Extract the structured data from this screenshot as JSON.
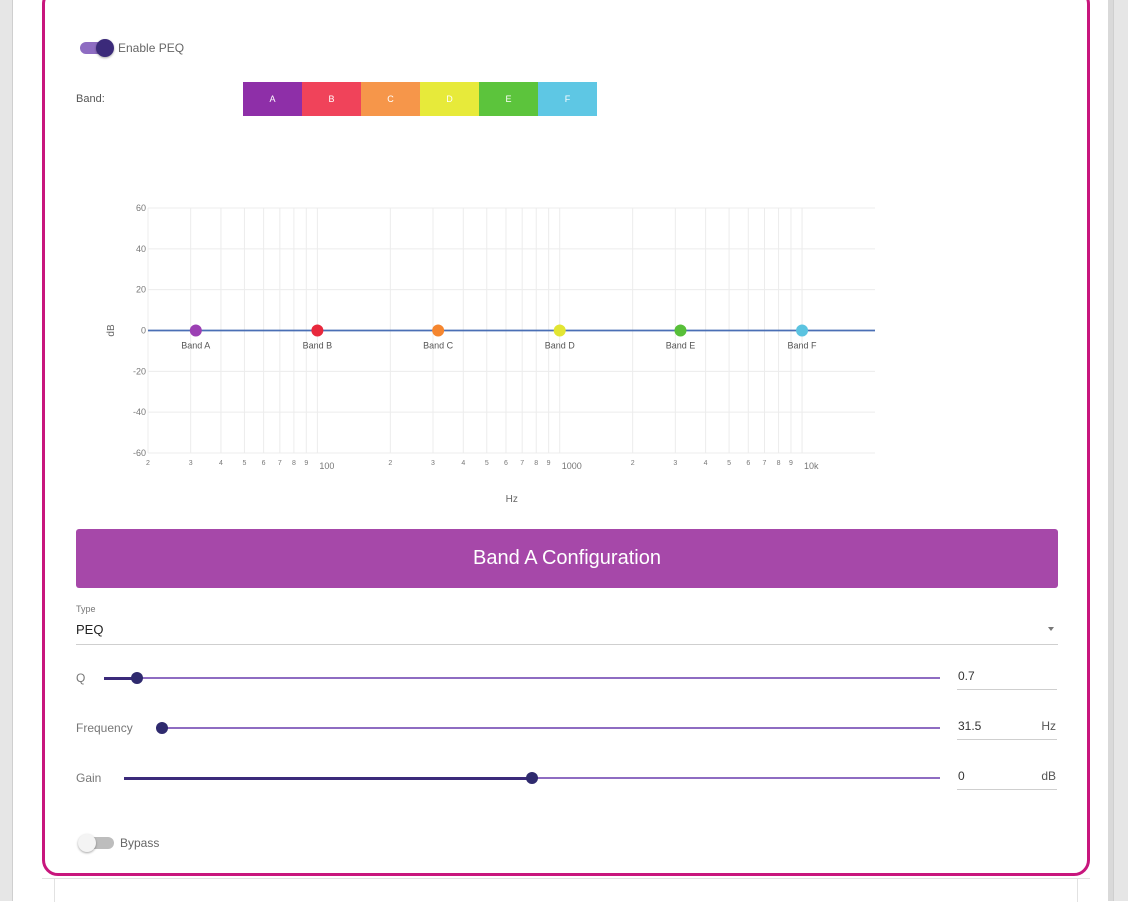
{
  "peq": {
    "enable_label": "Enable PEQ",
    "enabled": true
  },
  "bands": {
    "label": "Band:",
    "items": [
      {
        "id": "A",
        "color": "#8e2fa8"
      },
      {
        "id": "B",
        "color": "#f0435a"
      },
      {
        "id": "C",
        "color": "#f6964a"
      },
      {
        "id": "D",
        "color": "#e7ea3a"
      },
      {
        "id": "E",
        "color": "#5cc43c"
      },
      {
        "id": "F",
        "color": "#5ec7e4"
      }
    ],
    "selected": "A"
  },
  "chart_data": {
    "type": "line",
    "ylabel": "dB",
    "xlabel": "Hz",
    "x_scale": "log",
    "xlim": [
      20,
      20000
    ],
    "ylim": [
      -60,
      60
    ],
    "y_ticks": [
      60,
      40,
      20,
      0,
      -20,
      -40,
      -60
    ],
    "x_tick_labels": [
      {
        "v": 20,
        "t": "2"
      },
      {
        "v": 30,
        "t": "3"
      },
      {
        "v": 40,
        "t": "4"
      },
      {
        "v": 50,
        "t": "5"
      },
      {
        "v": 60,
        "t": "6"
      },
      {
        "v": 70,
        "t": "7"
      },
      {
        "v": 80,
        "t": "8"
      },
      {
        "v": 90,
        "t": "9"
      },
      {
        "v": 100,
        "t": "100"
      },
      {
        "v": 200,
        "t": "2"
      },
      {
        "v": 300,
        "t": "3"
      },
      {
        "v": 400,
        "t": "4"
      },
      {
        "v": 500,
        "t": "5"
      },
      {
        "v": 600,
        "t": "6"
      },
      {
        "v": 700,
        "t": "7"
      },
      {
        "v": 800,
        "t": "8"
      },
      {
        "v": 900,
        "t": "9"
      },
      {
        "v": 1000,
        "t": "1000"
      },
      {
        "v": 2000,
        "t": "2"
      },
      {
        "v": 3000,
        "t": "3"
      },
      {
        "v": 4000,
        "t": "4"
      },
      {
        "v": 5000,
        "t": "5"
      },
      {
        "v": 6000,
        "t": "6"
      },
      {
        "v": 7000,
        "t": "7"
      },
      {
        "v": 8000,
        "t": "8"
      },
      {
        "v": 9000,
        "t": "9"
      },
      {
        "v": 10000,
        "t": "10k"
      }
    ],
    "response": {
      "x": [
        20,
        20000
      ],
      "y": [
        0,
        0
      ],
      "color": "#4a6fb5"
    },
    "band_points": [
      {
        "name": "Band A",
        "x": 31.5,
        "y": 0,
        "color": "#9b3fb3"
      },
      {
        "name": "Band B",
        "x": 100,
        "y": 0,
        "color": "#e8283c"
      },
      {
        "name": "Band C",
        "x": 315,
        "y": 0,
        "color": "#f5862f"
      },
      {
        "name": "Band D",
        "x": 1000,
        "y": 0,
        "color": "#e2e533"
      },
      {
        "name": "Band E",
        "x": 3150,
        "y": 0,
        "color": "#58bf39"
      },
      {
        "name": "Band F",
        "x": 10000,
        "y": 0,
        "color": "#5bc3e0"
      }
    ],
    "grid": true
  },
  "config": {
    "title": "Band A Configuration",
    "color": "#a648a9",
    "type_label": "Type",
    "type_value": "PEQ",
    "q": {
      "label": "Q",
      "value": "0.7",
      "fraction": 0.04
    },
    "frequency": {
      "label": "Frequency",
      "value": "31.5",
      "unit": "Hz",
      "fraction": 0.0
    },
    "gain": {
      "label": "Gain",
      "value": "0",
      "unit": "dB",
      "fraction": 0.5
    },
    "bypass_label": "Bypass",
    "bypass": false
  }
}
